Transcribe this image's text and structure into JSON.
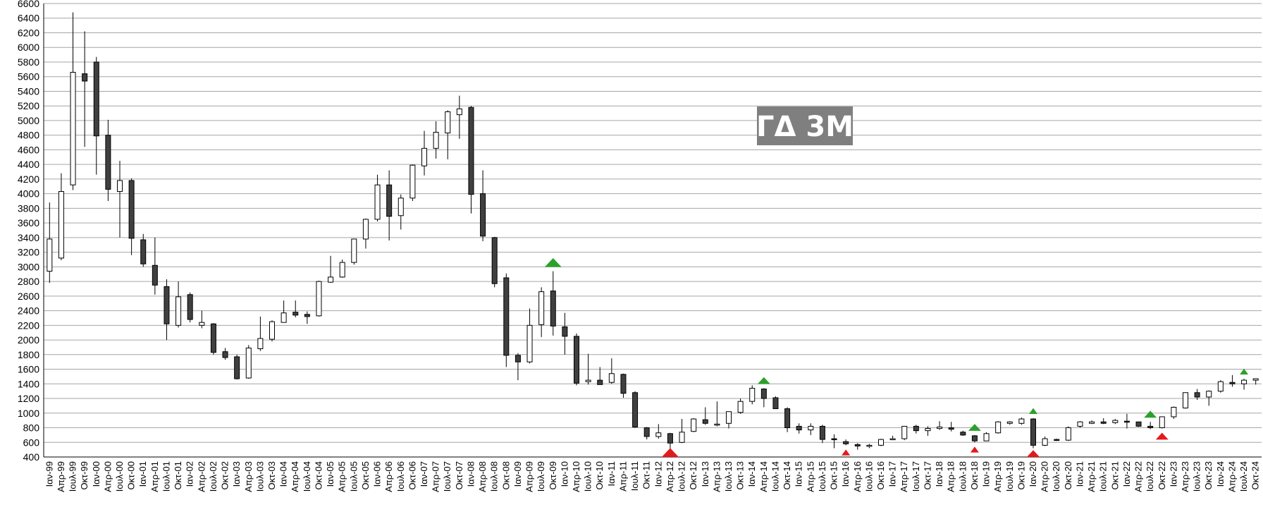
{
  "chart_data": {
    "type": "candlestick",
    "title": "ΓΔ 3Μ",
    "xlabel": "",
    "ylabel": "",
    "ylim": [
      400,
      6600
    ],
    "ystep": 200,
    "grid": true,
    "legend": "none",
    "colors": {
      "up": "#ffffff",
      "down": "#404040",
      "grid": "#a6a6a6",
      "buy_marker": "#2ca02c",
      "sell_marker": "#e31a1c",
      "title_bg": "#7f7f7f",
      "title_text": "#ffffff"
    },
    "categories": [
      "Ιαν-99",
      "Απρ-99",
      "Ιουλ-99",
      "Οκτ-99",
      "Ιαν-00",
      "Απρ-00",
      "Ιουλ-00",
      "Οκτ-00",
      "Ιαν-01",
      "Απρ-01",
      "Ιουλ-01",
      "Οκτ-01",
      "Ιαν-02",
      "Απρ-02",
      "Ιουλ-02",
      "Οκτ-02",
      "Ιαν-03",
      "Απρ-03",
      "Ιουλ-03",
      "Οκτ-03",
      "Ιαν-04",
      "Απρ-04",
      "Ιουλ-04",
      "Οκτ-04",
      "Ιαν-05",
      "Απρ-05",
      "Ιουλ-05",
      "Οκτ-05",
      "Ιαν-06",
      "Απρ-06",
      "Ιουλ-06",
      "Οκτ-06",
      "Ιαν-07",
      "Απρ-07",
      "Ιουλ-07",
      "Οκτ-07",
      "Ιαν-08",
      "Απρ-08",
      "Ιουλ-08",
      "Οκτ-08",
      "Ιαν-09",
      "Απρ-09",
      "Ιουλ-09",
      "Οκτ-09",
      "Ιαν-10",
      "Απρ-10",
      "Ιουλ-10",
      "Οκτ-10",
      "Ιαν-11",
      "Απρ-11",
      "Ιουλ-11",
      "Οκτ-11",
      "Ιαν-12",
      "Απρ-12",
      "Ιουλ-12",
      "Οκτ-12",
      "Ιαν-13",
      "Απρ-13",
      "Ιουλ-13",
      "Οκτ-13",
      "Ιαν-14",
      "Απρ-14",
      "Ιουλ-14",
      "Οκτ-14",
      "Ιαν-15",
      "Απρ-15",
      "Ιουλ-15",
      "Οκτ-15",
      "Ιαν-16",
      "Απρ-16",
      "Ιουλ-16",
      "Οκτ-16",
      "Ιαν-17",
      "Απρ-17",
      "Ιουλ-17",
      "Οκτ-17",
      "Ιαν-18",
      "Απρ-18",
      "Ιουλ-18",
      "Οκτ-18",
      "Ιαν-19",
      "Απρ-19",
      "Ιουλ-19",
      "Οκτ-19",
      "Ιαν-20",
      "Απρ-20",
      "Ιουλ-20",
      "Οκτ-20",
      "Ιαν-21",
      "Απρ-21",
      "Ιουλ-21",
      "Οκτ-21",
      "Ιαν-22",
      "Απρ-22",
      "Ιουλ-22",
      "Οκτ-22",
      "Ιαν-23",
      "Απρ-23",
      "Ιουλ-23",
      "Οκτ-23",
      "Ιαν-24",
      "Απρ-24",
      "Ιουλ-24",
      "Οκτ-24"
    ],
    "ohlc": [
      [
        2940,
        3880,
        2780,
        3380
      ],
      [
        3120,
        4280,
        3090,
        4030
      ],
      [
        4120,
        6480,
        4050,
        5660
      ],
      [
        5640,
        6220,
        4640,
        5540
      ],
      [
        5800,
        5870,
        4260,
        4790
      ],
      [
        4800,
        5010,
        3900,
        4060
      ],
      [
        4030,
        4450,
        3400,
        4180
      ],
      [
        4180,
        4210,
        3160,
        3390
      ],
      [
        3370,
        3450,
        3000,
        3040
      ],
      [
        3020,
        3400,
        2620,
        2750
      ],
      [
        2730,
        2830,
        2000,
        2220
      ],
      [
        2200,
        2800,
        2170,
        2590
      ],
      [
        2620,
        2650,
        2240,
        2280
      ],
      [
        2200,
        2400,
        2160,
        2240
      ],
      [
        2220,
        2230,
        1800,
        1830
      ],
      [
        1840,
        1890,
        1730,
        1760
      ],
      [
        1770,
        1800,
        1460,
        1470
      ],
      [
        1480,
        1930,
        1470,
        1890
      ],
      [
        1880,
        2320,
        1850,
        2020
      ],
      [
        2010,
        2270,
        1980,
        2250
      ],
      [
        2240,
        2540,
        2240,
        2370
      ],
      [
        2380,
        2540,
        2310,
        2340
      ],
      [
        2350,
        2390,
        2220,
        2320
      ],
      [
        2330,
        2810,
        2320,
        2800
      ],
      [
        2790,
        3150,
        2780,
        2860
      ],
      [
        2860,
        3100,
        2850,
        3060
      ],
      [
        3060,
        3380,
        3030,
        3380
      ],
      [
        3380,
        3660,
        3250,
        3650
      ],
      [
        3650,
        4260,
        3620,
        4120
      ],
      [
        4120,
        4320,
        3360,
        3690
      ],
      [
        3700,
        3990,
        3510,
        3940
      ],
      [
        3940,
        4400,
        3900,
        4390
      ],
      [
        4380,
        4860,
        4250,
        4620
      ],
      [
        4620,
        4990,
        4480,
        4840
      ],
      [
        4830,
        5140,
        4470,
        5120
      ],
      [
        5080,
        5340,
        4750,
        5160
      ],
      [
        5180,
        5200,
        3730,
        3990
      ],
      [
        4000,
        4320,
        3350,
        3420
      ],
      [
        3400,
        3410,
        2720,
        2770
      ],
      [
        2850,
        2910,
        1630,
        1790
      ],
      [
        1790,
        1820,
        1450,
        1700
      ],
      [
        1700,
        2430,
        1680,
        2200
      ],
      [
        2210,
        2720,
        2040,
        2660
      ],
      [
        2670,
        2940,
        2060,
        2190
      ],
      [
        2180,
        2370,
        1800,
        2050
      ],
      [
        2050,
        2090,
        1380,
        1410
      ],
      [
        1430,
        1810,
        1390,
        1450
      ],
      [
        1450,
        1630,
        1390,
        1390
      ],
      [
        1420,
        1750,
        1400,
        1540
      ],
      [
        1530,
        1540,
        1210,
        1270
      ],
      [
        1280,
        1300,
        800,
        810
      ],
      [
        800,
        810,
        640,
        680
      ],
      [
        680,
        850,
        650,
        730
      ],
      [
        720,
        730,
        460,
        590
      ],
      [
        600,
        920,
        590,
        740
      ],
      [
        750,
        930,
        740,
        920
      ],
      [
        910,
        1080,
        840,
        860
      ],
      [
        850,
        1160,
        820,
        850
      ],
      [
        860,
        1020,
        790,
        1020
      ],
      [
        1010,
        1200,
        990,
        1160
      ],
      [
        1160,
        1380,
        1120,
        1340
      ],
      [
        1330,
        1340,
        1080,
        1200
      ],
      [
        1210,
        1230,
        1060,
        1060
      ],
      [
        1060,
        1080,
        740,
        800
      ],
      [
        820,
        860,
        720,
        770
      ],
      [
        770,
        860,
        700,
        820
      ],
      [
        820,
        840,
        590,
        640
      ],
      [
        650,
        710,
        520,
        640
      ],
      [
        610,
        640,
        560,
        580
      ],
      [
        570,
        590,
        500,
        550
      ],
      [
        550,
        580,
        520,
        560
      ],
      [
        560,
        650,
        550,
        640
      ],
      [
        650,
        690,
        640,
        650
      ],
      [
        650,
        820,
        630,
        820
      ],
      [
        820,
        840,
        720,
        760
      ],
      [
        760,
        820,
        690,
        790
      ],
      [
        790,
        890,
        770,
        810
      ],
      [
        800,
        880,
        750,
        780
      ],
      [
        740,
        760,
        690,
        700
      ],
      [
        690,
        700,
        600,
        620
      ],
      [
        620,
        740,
        620,
        720
      ],
      [
        730,
        890,
        720,
        880
      ],
      [
        860,
        890,
        840,
        880
      ],
      [
        860,
        940,
        840,
        920
      ],
      [
        920,
        930,
        520,
        560
      ],
      [
        560,
        680,
        550,
        650
      ],
      [
        640,
        650,
        620,
        630
      ],
      [
        630,
        820,
        620,
        800
      ],
      [
        820,
        890,
        800,
        880
      ],
      [
        860,
        900,
        850,
        880
      ],
      [
        880,
        930,
        850,
        860
      ],
      [
        870,
        920,
        850,
        900
      ],
      [
        890,
        990,
        790,
        880
      ],
      [
        880,
        880,
        810,
        820
      ],
      [
        820,
        880,
        780,
        800
      ],
      [
        800,
        950,
        790,
        950
      ],
      [
        950,
        1090,
        920,
        1080
      ],
      [
        1070,
        1280,
        1060,
        1280
      ],
      [
        1280,
        1330,
        1180,
        1220
      ],
      [
        1220,
        1310,
        1100,
        1300
      ],
      [
        1300,
        1450,
        1280,
        1430
      ],
      [
        1420,
        1520,
        1360,
        1400
      ],
      [
        1400,
        1470,
        1320,
        1450
      ],
      [
        1450,
        1470,
        1390,
        1470
      ]
    ],
    "buy_markers": [
      {
        "index": 43,
        "size": "large"
      },
      {
        "index": 61,
        "size": "medium"
      },
      {
        "index": 79,
        "size": "medium"
      },
      {
        "index": 84,
        "size": "small"
      },
      {
        "index": 94,
        "size": "medium"
      },
      {
        "index": 102,
        "size": "small"
      }
    ],
    "sell_markers": [
      {
        "index": 53,
        "size": "large"
      },
      {
        "index": 68,
        "size": "small"
      },
      {
        "index": 79,
        "size": "small"
      },
      {
        "index": 84,
        "size": "medium"
      },
      {
        "index": 95,
        "size": "medium"
      }
    ]
  }
}
